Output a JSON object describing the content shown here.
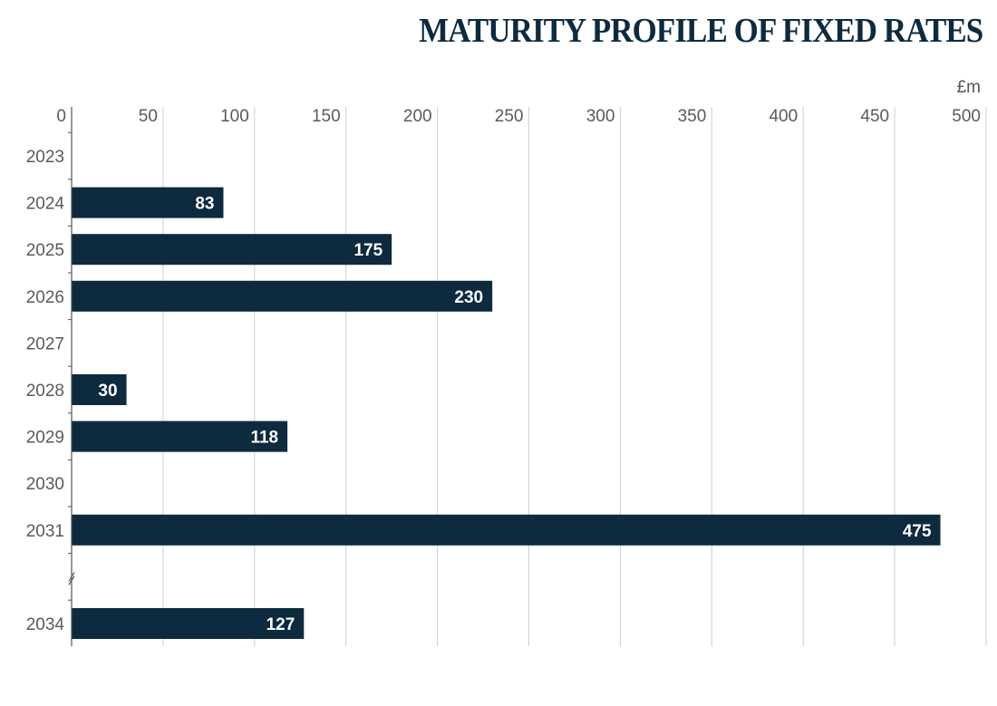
{
  "chart_data": {
    "type": "bar",
    "orientation": "horizontal",
    "title": "MATURITY PROFILE OF FIXED RATES",
    "unit": "£m",
    "categories": [
      "2023",
      "2024",
      "2025",
      "2026",
      "2027",
      "2028",
      "2029",
      "2030",
      "2031",
      "2034"
    ],
    "values": [
      null,
      83,
      175,
      230,
      null,
      30,
      118,
      null,
      475,
      127
    ],
    "x_ticks": [
      0,
      50,
      100,
      150,
      200,
      250,
      300,
      350,
      400,
      450,
      500
    ],
    "xlim": [
      0,
      500
    ],
    "grid": true,
    "axis_break": "between 2031 and 2034",
    "bar_color": "#0d2a3f"
  }
}
